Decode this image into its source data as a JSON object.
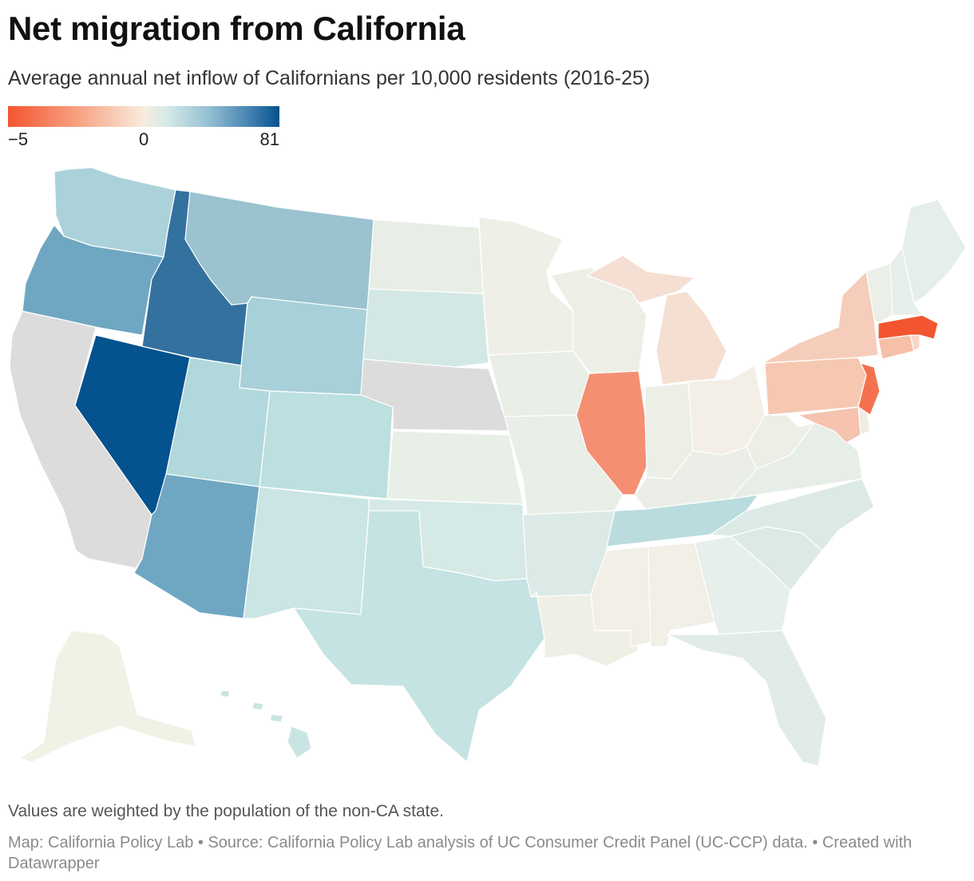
{
  "header": {
    "title": "Net migration from California",
    "subtitle": "Average annual net inflow of Californians per 10,000 residents (2016-25)"
  },
  "legend": {
    "min_label": "−5",
    "mid_label": "0",
    "max_label": "81",
    "color_low": "#f2552f",
    "color_mid": "#f8ecde",
    "color_high": "#04528e",
    "no_data_color": "#dcdcdc"
  },
  "map": {
    "states": [
      {
        "name": "California",
        "fill": "#dcdcdc"
      },
      {
        "name": "Oregon",
        "fill": "#6fa7c3"
      },
      {
        "name": "Washington",
        "fill": "#abd2da"
      },
      {
        "name": "Idaho",
        "fill": "#33719f"
      },
      {
        "name": "Nevada",
        "fill": "#04528e"
      },
      {
        "name": "Montana",
        "fill": "#9ac2cf"
      },
      {
        "name": "Wyoming",
        "fill": "#a8d0d8"
      },
      {
        "name": "Utah",
        "fill": "#b1d8dc"
      },
      {
        "name": "Arizona",
        "fill": "#6fa7c3"
      },
      {
        "name": "Colorado",
        "fill": "#bcdfe0"
      },
      {
        "name": "New Mexico",
        "fill": "#cae5e3"
      },
      {
        "name": "Texas",
        "fill": "#c5e3e3"
      },
      {
        "name": "Oklahoma",
        "fill": "#d5e9e6"
      },
      {
        "name": "Kansas",
        "fill": "#e8efe6"
      },
      {
        "name": "Nebraska",
        "fill": "#dcdcdc"
      },
      {
        "name": "South Dakota",
        "fill": "#d3e8e5"
      },
      {
        "name": "North Dakota",
        "fill": "#e8eee6"
      },
      {
        "name": "Minnesota",
        "fill": "#f0efe7"
      },
      {
        "name": "Iowa",
        "fill": "#e9eee6"
      },
      {
        "name": "Missouri",
        "fill": "#e9eee6"
      },
      {
        "name": "Arkansas",
        "fill": "#dceae7"
      },
      {
        "name": "Louisiana",
        "fill": "#f0efe6"
      },
      {
        "name": "Mississippi",
        "fill": "#f2efe6"
      },
      {
        "name": "Alabama",
        "fill": "#f1efe6"
      },
      {
        "name": "Tennessee",
        "fill": "#badcde"
      },
      {
        "name": "Kentucky",
        "fill": "#ebeee6"
      },
      {
        "name": "Illinois",
        "fill": "#f58f73"
      },
      {
        "name": "Wisconsin",
        "fill": "#edefe7"
      },
      {
        "name": "Michigan",
        "fill": "#f5dfd2"
      },
      {
        "name": "Indiana",
        "fill": "#ecefe6"
      },
      {
        "name": "Ohio",
        "fill": "#f3efe6"
      },
      {
        "name": "Georgia",
        "fill": "#e6efea"
      },
      {
        "name": "Florida",
        "fill": "#e1ece8"
      },
      {
        "name": "South Carolina",
        "fill": "#dde9e6"
      },
      {
        "name": "North Carolina",
        "fill": "#dceae7"
      },
      {
        "name": "Virginia",
        "fill": "#e6eee7"
      },
      {
        "name": "West Virginia",
        "fill": "#edefe7"
      },
      {
        "name": "Pennsylvania",
        "fill": "#f6c8b2"
      },
      {
        "name": "New York",
        "fill": "#f6cdba"
      },
      {
        "name": "Maryland",
        "fill": "#f5c3ae"
      },
      {
        "name": "Delaware",
        "fill": "#f0ebe4"
      },
      {
        "name": "New Jersey",
        "fill": "#f4714f"
      },
      {
        "name": "Connecticut",
        "fill": "#f6bfa8"
      },
      {
        "name": "Rhode Island",
        "fill": "#f6d6c7"
      },
      {
        "name": "Massachusetts",
        "fill": "#f2552f"
      },
      {
        "name": "Vermont",
        "fill": "#ecefe7"
      },
      {
        "name": "New Hampshire",
        "fill": "#e7efea"
      },
      {
        "name": "Maine",
        "fill": "#e6eee9"
      },
      {
        "name": "Alaska",
        "fill": "#f1f1e6"
      },
      {
        "name": "Hawaii",
        "fill": "#c9e5e3"
      }
    ]
  },
  "footer": {
    "notes": "Values are weighted by the population of the non-CA state.",
    "source_line": "Map: California Policy Lab • Source: California Policy Lab analysis of UC Consumer Credit Panel (UC-CCP) data. • Created with Datawrapper"
  }
}
